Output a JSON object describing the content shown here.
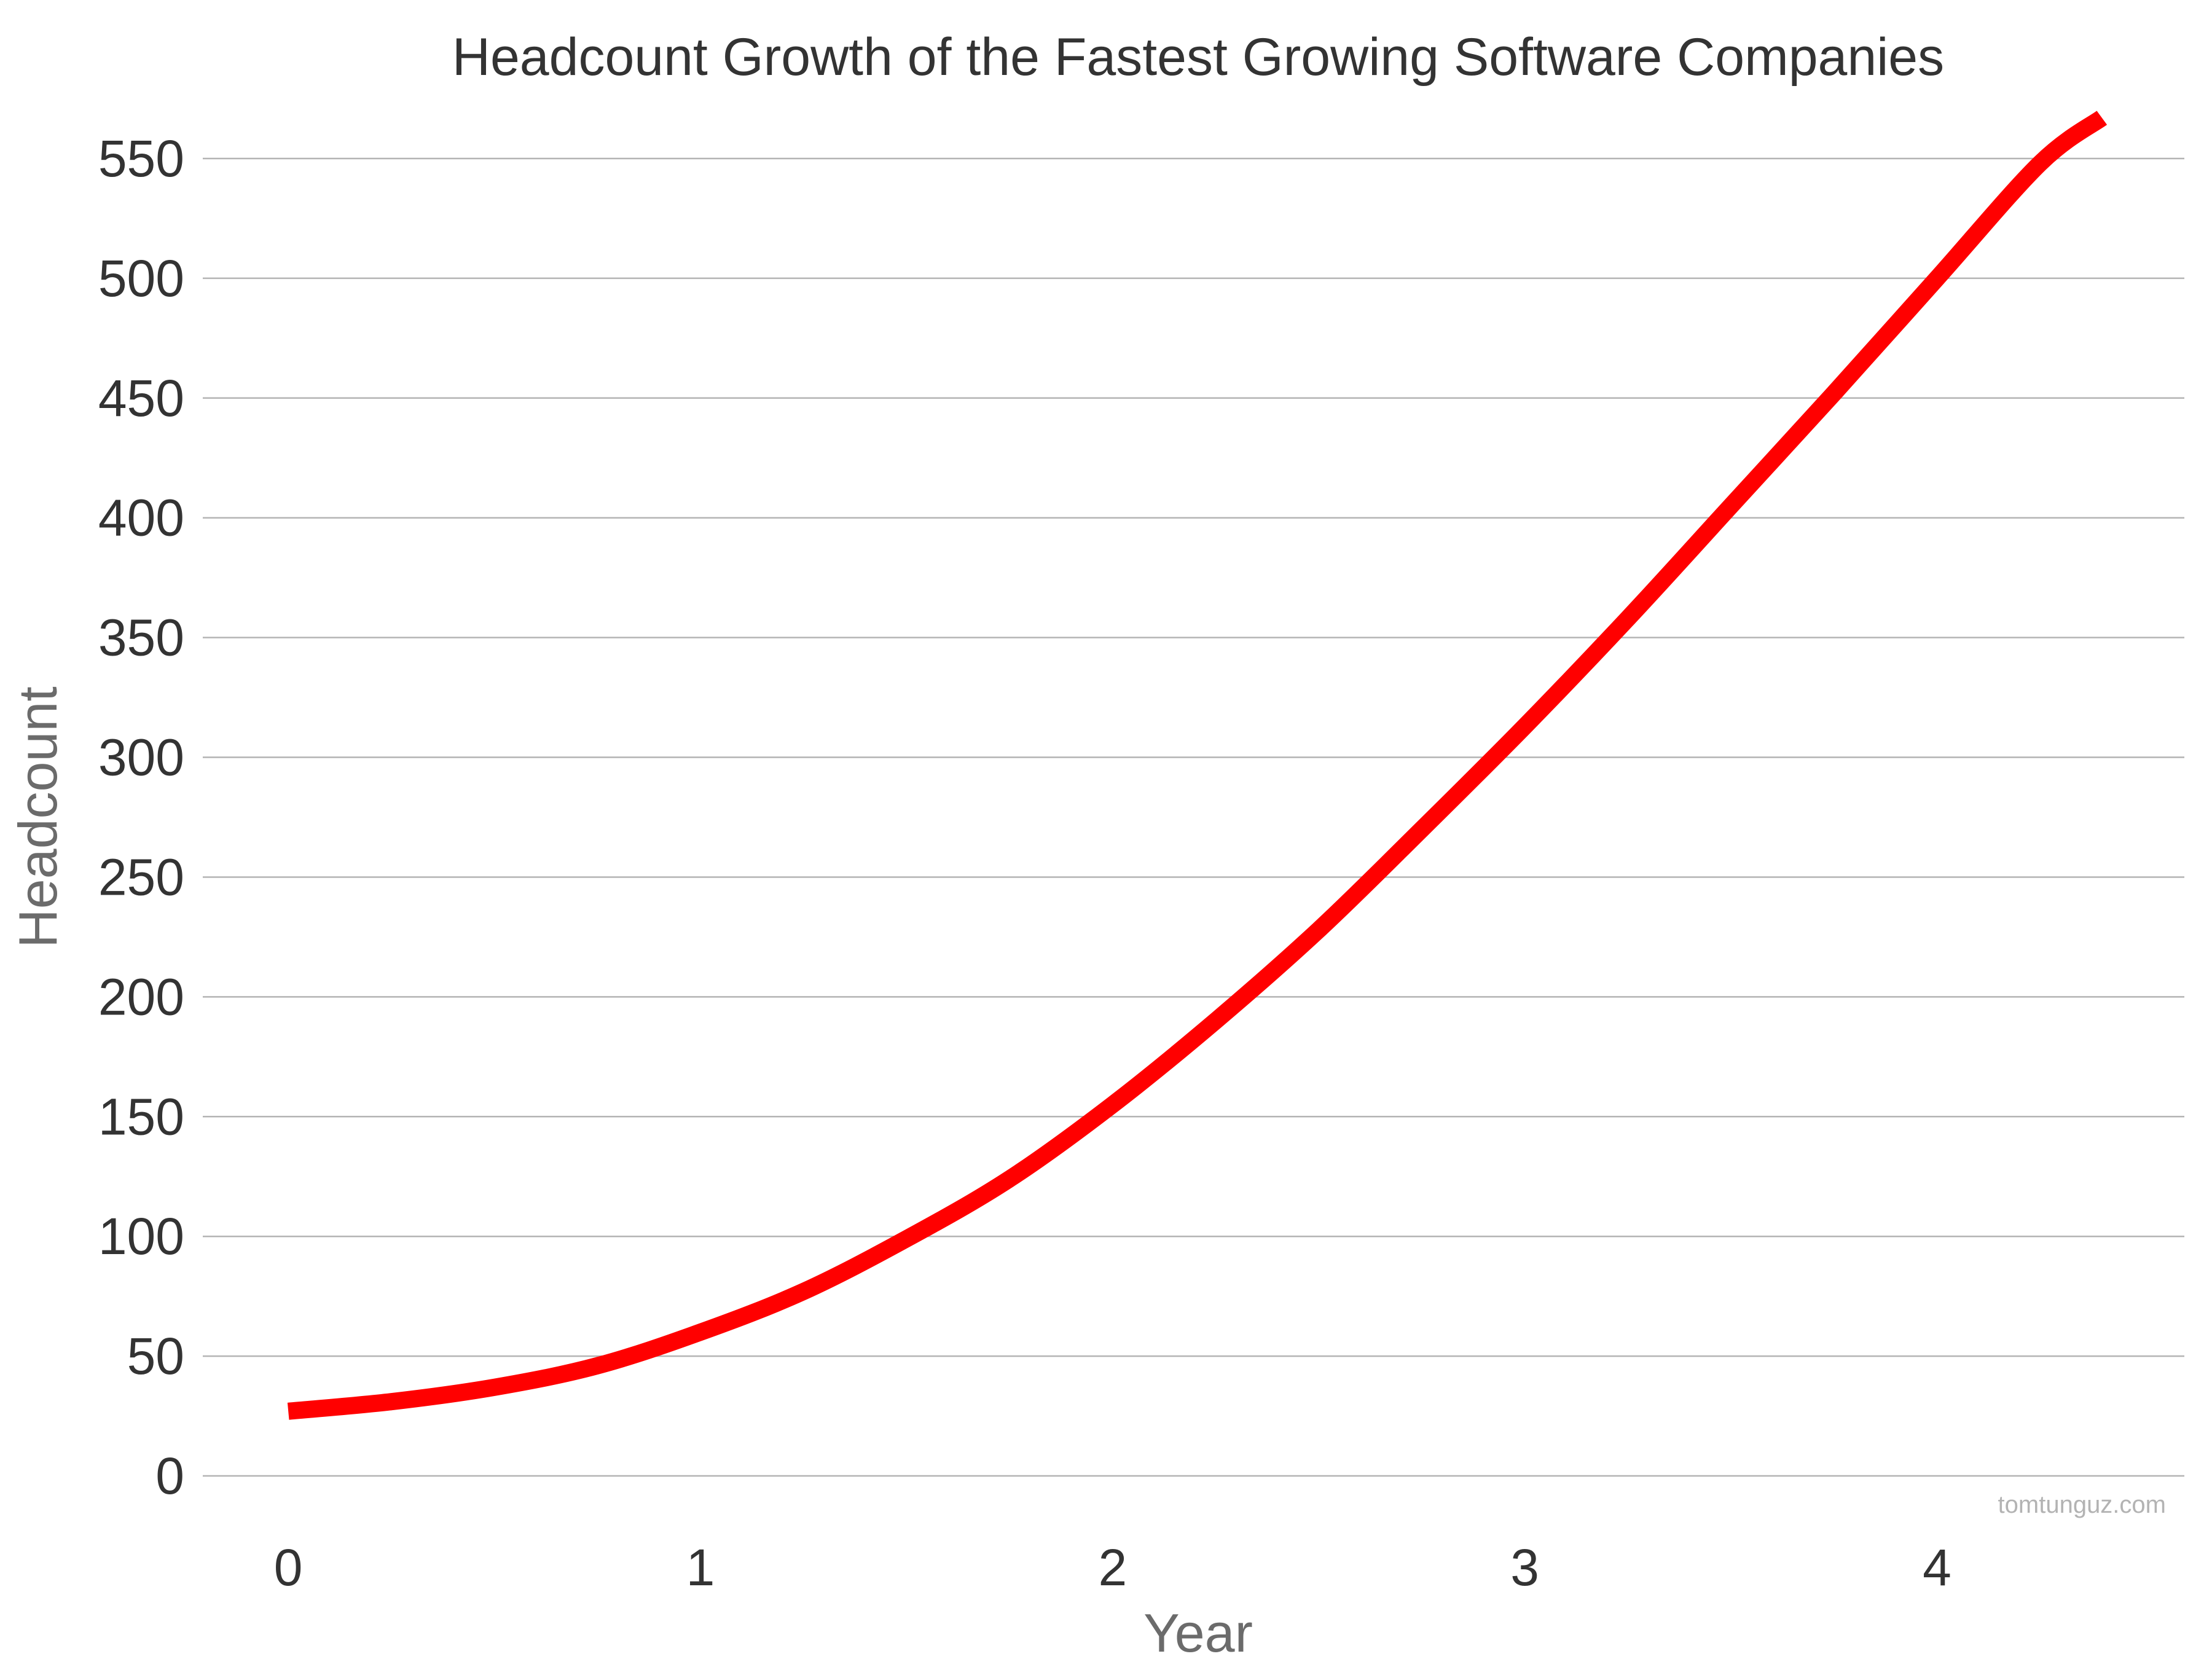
{
  "chart_data": {
    "type": "line",
    "title": "Headcount Growth of the Fastest Growing Software Companies",
    "xlabel": "Year",
    "ylabel": "Headcount",
    "xlim": [
      -0.2,
      4.6
    ],
    "ylim": [
      -20,
      570
    ],
    "x_ticks": [
      0,
      1,
      2,
      3,
      4
    ],
    "y_ticks": [
      0,
      50,
      100,
      150,
      200,
      250,
      300,
      350,
      400,
      450,
      500,
      550
    ],
    "grid": "horizontal",
    "series": [
      {
        "color": "#ff0000",
        "x": [
          0,
          0.25,
          0.5,
          0.75,
          1.0,
          1.25,
          1.5,
          1.75,
          2.0,
          2.25,
          2.5,
          2.75,
          3.0,
          3.25,
          3.5,
          3.75,
          4.0,
          4.25,
          4.4
        ],
        "y": [
          27,
          31,
          37,
          46,
          60,
          77,
          99,
          124,
          155,
          190,
          228,
          270,
          313,
          358,
          405,
          452,
          500,
          548,
          567
        ]
      }
    ]
  },
  "watermark": "tomtunguz.com"
}
